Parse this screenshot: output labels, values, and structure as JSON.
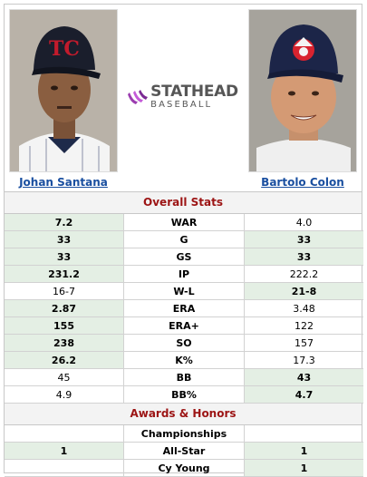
{
  "players": {
    "left": {
      "name": "Johan Santana"
    },
    "right": {
      "name": "Bartolo Colon"
    }
  },
  "logo": {
    "main": "STATHEAD",
    "sub": "BASEBALL"
  },
  "sections": {
    "overall": "Overall Stats",
    "awards": "Awards & Honors"
  },
  "stats": [
    {
      "label": "WAR",
      "left": "7.2",
      "right": "4.0",
      "leader": "left"
    },
    {
      "label": "G",
      "left": "33",
      "right": "33",
      "leader": "both"
    },
    {
      "label": "GS",
      "left": "33",
      "right": "33",
      "leader": "both"
    },
    {
      "label": "IP",
      "left": "231.2",
      "right": "222.2",
      "leader": "left"
    },
    {
      "label": "W-L",
      "left": "16-7",
      "right": "21-8",
      "leader": "right"
    },
    {
      "label": "ERA",
      "left": "2.87",
      "right": "3.48",
      "leader": "left"
    },
    {
      "label": "ERA+",
      "left": "155",
      "right": "122",
      "leader": "left"
    },
    {
      "label": "SO",
      "left": "238",
      "right": "157",
      "leader": "left"
    },
    {
      "label": "K%",
      "left": "26.2",
      "right": "17.3",
      "leader": "left"
    },
    {
      "label": "BB",
      "left": "45",
      "right": "43",
      "leader": "right"
    },
    {
      "label": "BB%",
      "left": "4.9",
      "right": "4.7",
      "leader": "right"
    }
  ],
  "awards": [
    {
      "label": "Championships",
      "left": "",
      "right": "",
      "leader": "none"
    },
    {
      "label": "All-Star",
      "left": "1",
      "right": "1",
      "leader": "both"
    },
    {
      "label": "Cy Young",
      "left": "",
      "right": "1",
      "leader": "right"
    }
  ],
  "colors": {
    "highlight": "#e4efe4",
    "section_text": "#9c1414",
    "link": "#1a4fa0"
  }
}
